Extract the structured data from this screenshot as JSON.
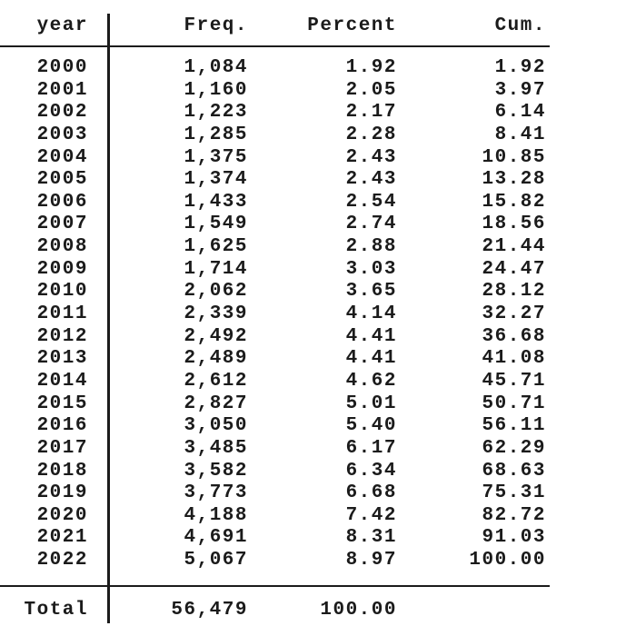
{
  "colors": {
    "text": "#1b1b1b",
    "line": "#1b1b1b",
    "background": "#ffffff"
  },
  "table": {
    "columns": [
      "year",
      "Freq.",
      "Percent",
      "Cum."
    ],
    "rows": [
      [
        "2000",
        "1,084",
        "1.92",
        "1.92"
      ],
      [
        "2001",
        "1,160",
        "2.05",
        "3.97"
      ],
      [
        "2002",
        "1,223",
        "2.17",
        "6.14"
      ],
      [
        "2003",
        "1,285",
        "2.28",
        "8.41"
      ],
      [
        "2004",
        "1,375",
        "2.43",
        "10.85"
      ],
      [
        "2005",
        "1,374",
        "2.43",
        "13.28"
      ],
      [
        "2006",
        "1,433",
        "2.54",
        "15.82"
      ],
      [
        "2007",
        "1,549",
        "2.74",
        "18.56"
      ],
      [
        "2008",
        "1,625",
        "2.88",
        "21.44"
      ],
      [
        "2009",
        "1,714",
        "3.03",
        "24.47"
      ],
      [
        "2010",
        "2,062",
        "3.65",
        "28.12"
      ],
      [
        "2011",
        "2,339",
        "4.14",
        "32.27"
      ],
      [
        "2012",
        "2,492",
        "4.41",
        "36.68"
      ],
      [
        "2013",
        "2,489",
        "4.41",
        "41.08"
      ],
      [
        "2014",
        "2,612",
        "4.62",
        "45.71"
      ],
      [
        "2015",
        "2,827",
        "5.01",
        "50.71"
      ],
      [
        "2016",
        "3,050",
        "5.40",
        "56.11"
      ],
      [
        "2017",
        "3,485",
        "6.17",
        "62.29"
      ],
      [
        "2018",
        "3,582",
        "6.34",
        "68.63"
      ],
      [
        "2019",
        "3,773",
        "6.68",
        "75.31"
      ],
      [
        "2020",
        "4,188",
        "7.42",
        "82.72"
      ],
      [
        "2021",
        "4,691",
        "8.31",
        "91.03"
      ],
      [
        "2022",
        "5,067",
        "8.97",
        "100.00"
      ]
    ],
    "total": {
      "label": "Total",
      "freq": "56,479",
      "percent": "100.00",
      "cum": ""
    }
  }
}
